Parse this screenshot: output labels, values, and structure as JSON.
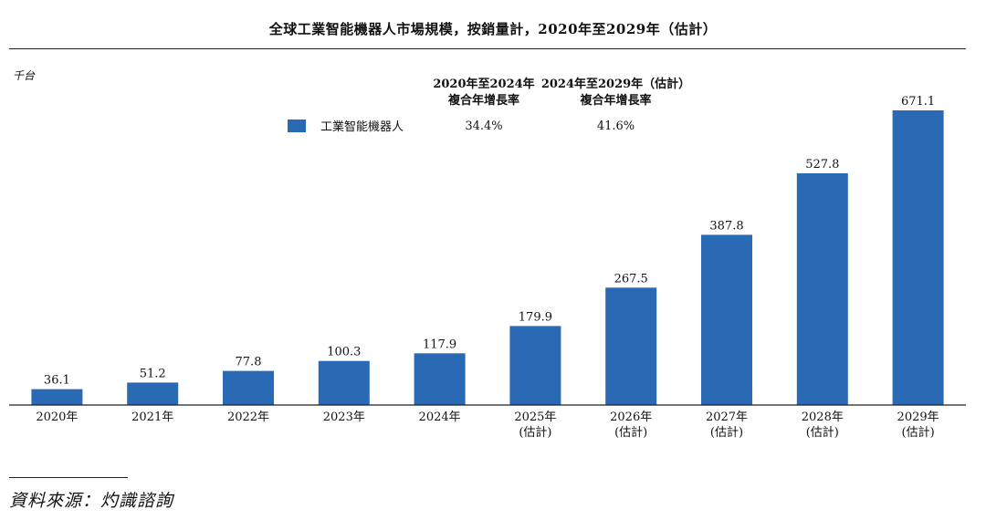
{
  "title": "全球工業智能機器人市場規模，按銷量計，2020年至2029年（估計）",
  "unit": "千台",
  "legend": {
    "label": "工業智能機器人",
    "color": "#2a6ab5"
  },
  "cagr": [
    {
      "period": "2020年至2024年",
      "label": "複合年增長率",
      "value": "34.4%"
    },
    {
      "period": "2024年至2029年（估計）",
      "label": "複合年增長率",
      "value": "41.6%"
    }
  ],
  "source": "資料來源：灼識諮詢",
  "chart_data": {
    "type": "bar",
    "title": "全球工業智能機器人市場規模，按銷量計，2020年至2029年（估計）",
    "ylabel": "千台",
    "xlabel": "",
    "categories": [
      "2020年",
      "2021年",
      "2022年",
      "2023年",
      "2024年",
      "2025年",
      "2026年",
      "2027年",
      "2028年",
      "2029年"
    ],
    "category_notes": [
      "",
      "",
      "",
      "",
      "",
      "(估計)",
      "(估計)",
      "(估計)",
      "(估計)",
      "(估計)"
    ],
    "series": [
      {
        "name": "工業智能機器人",
        "color": "#2a6ab5",
        "values": [
          36.1,
          51.2,
          77.8,
          100.3,
          117.9,
          179.9,
          267.5,
          387.8,
          527.8,
          671.1
        ],
        "labels": [
          "36.1",
          "51.2",
          "77.8",
          "100.3",
          "117.9",
          "179.9",
          "267.5",
          "387.8",
          "527.8",
          "671.1"
        ]
      }
    ],
    "ylim": [
      0,
      680
    ],
    "grid": false,
    "legend_position": "top-left"
  }
}
